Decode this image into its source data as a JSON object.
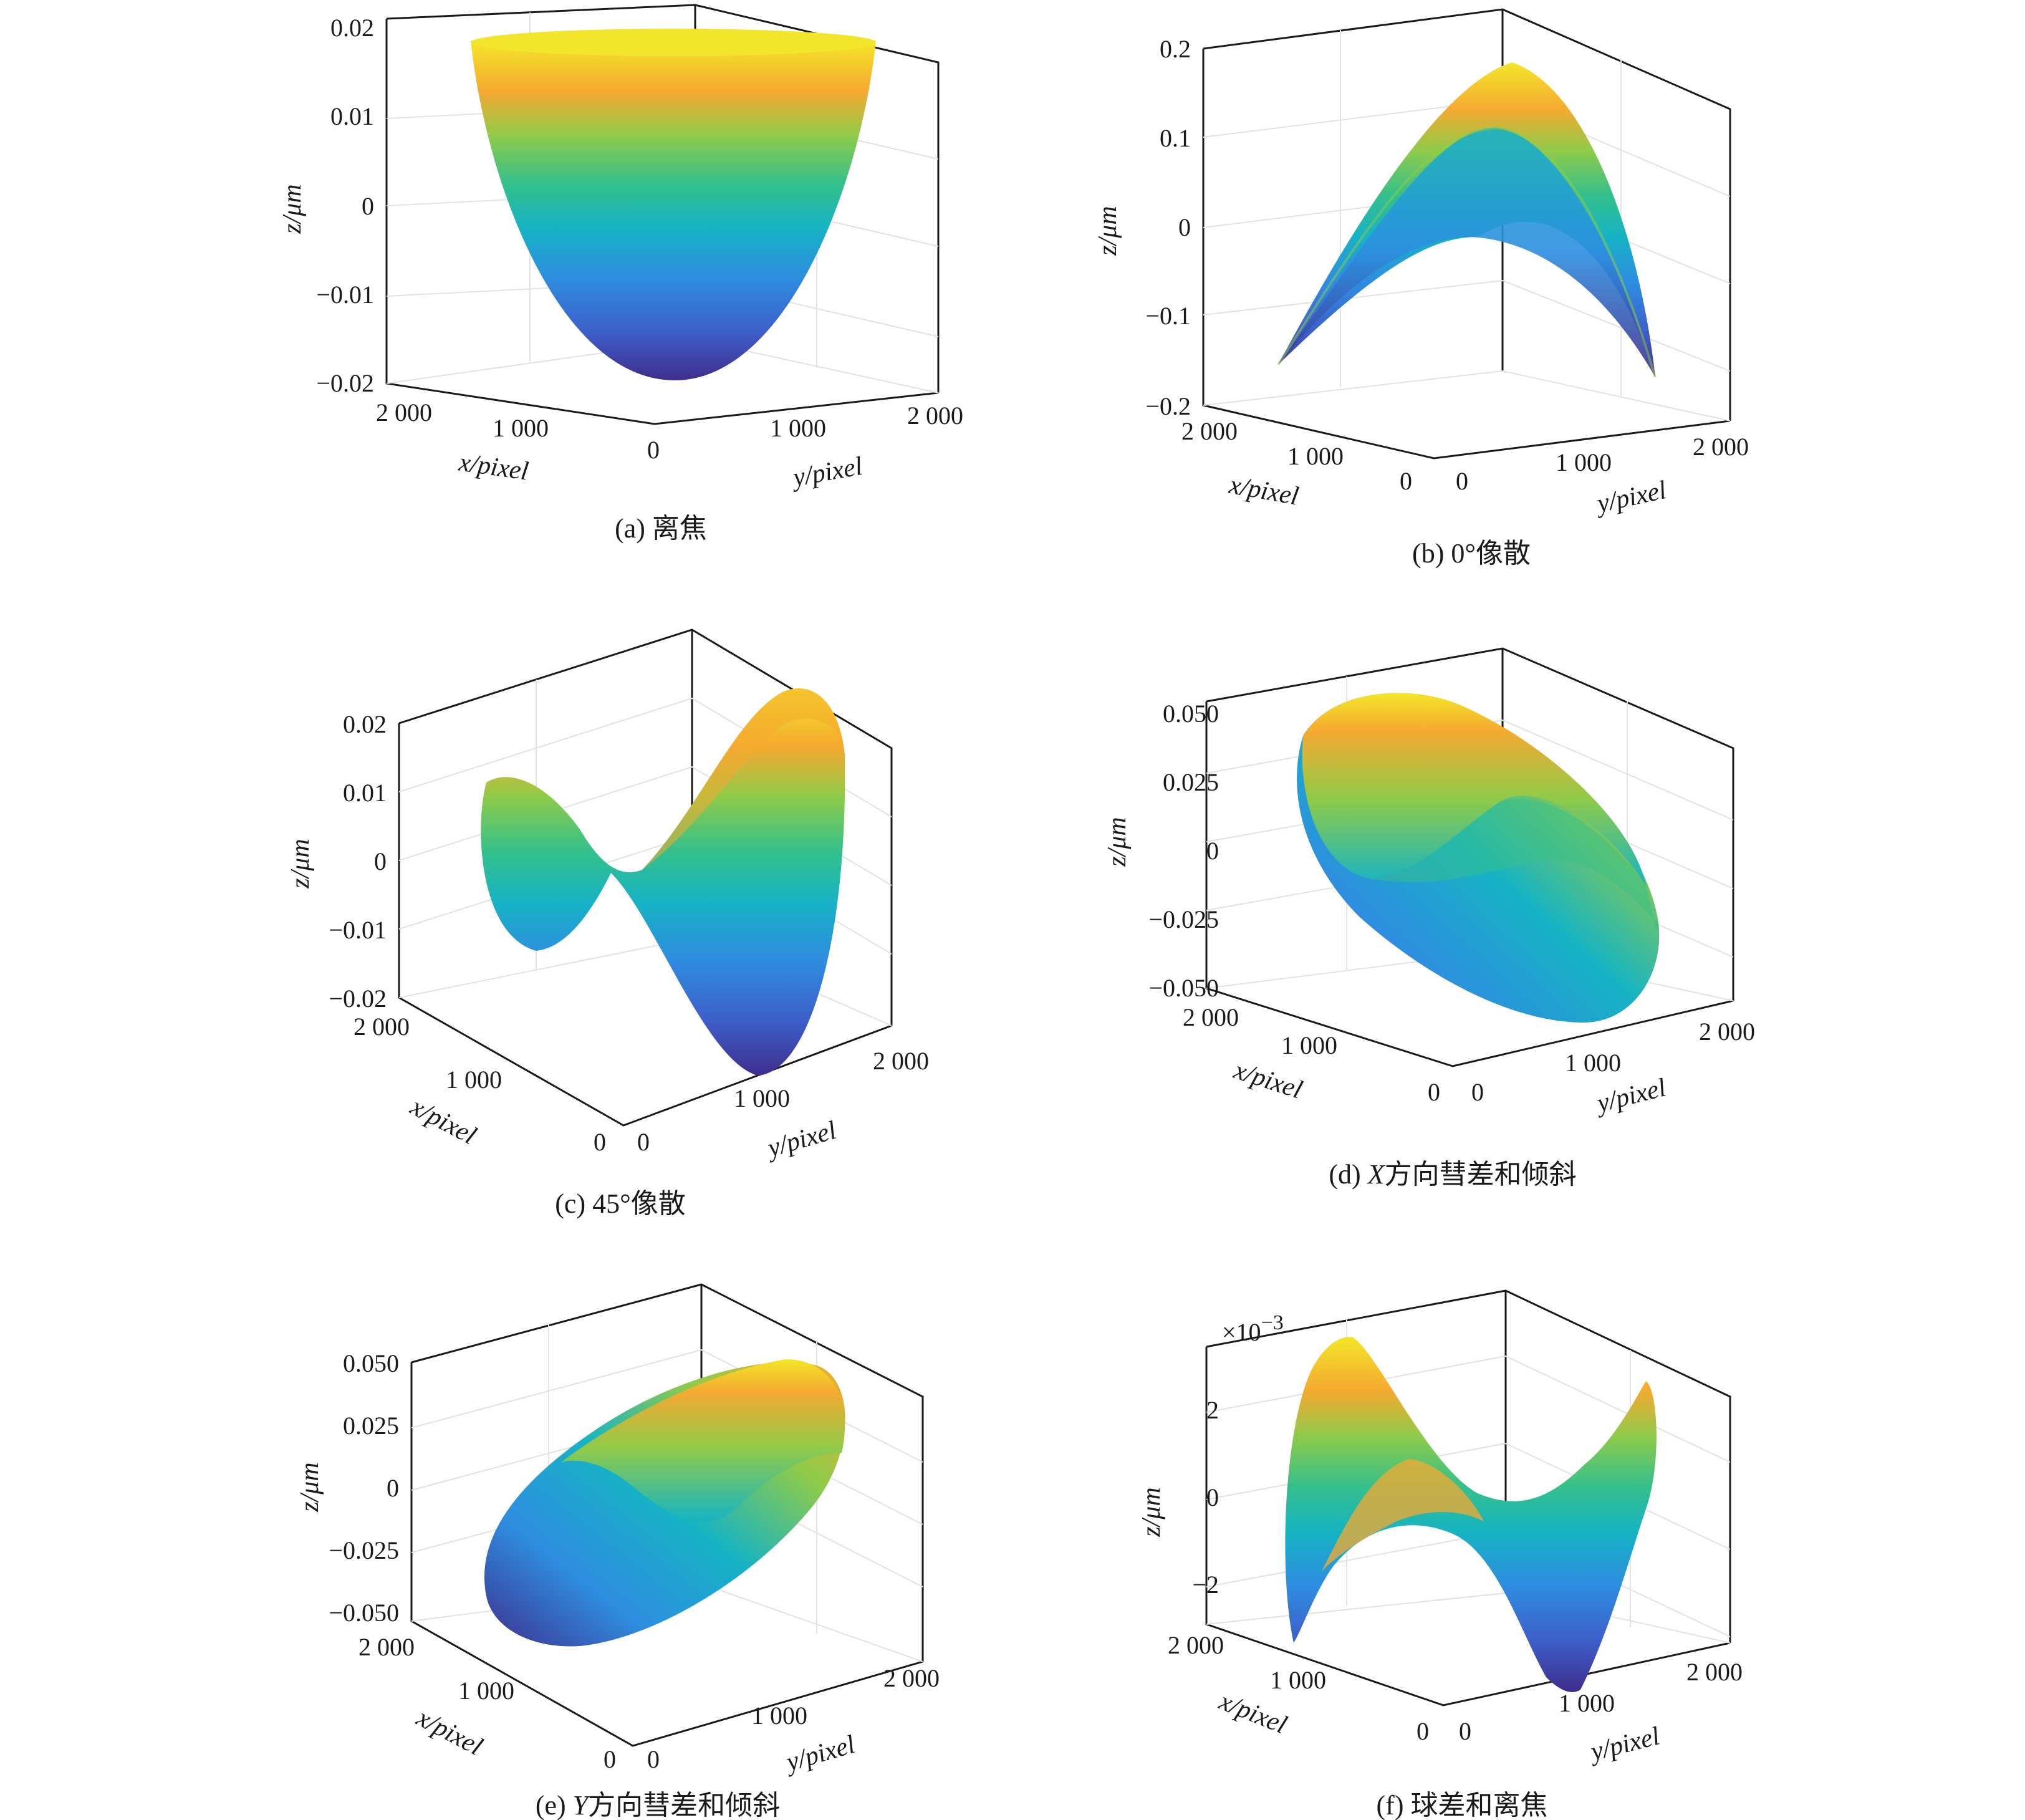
{
  "figure": {
    "colors": {
      "colormap": [
        "#3e2e8c",
        "#3d5ec9",
        "#2e8de0",
        "#16b3c4",
        "#35c08a",
        "#8fcb49",
        "#d3c32c",
        "#f5a930",
        "#f3e629"
      ],
      "axis": "#1a1a1a",
      "grid": "#e2e2e2"
    }
  },
  "chart_data": [
    {
      "id": "a",
      "type": "surface",
      "caption": "(a) 离焦",
      "zlabel": "z/μm",
      "xlabel": "x/pixel",
      "ylabel": "y/pixel",
      "zlim": [
        -0.02,
        0.02
      ],
      "zticks": [
        "0.02",
        "0.01",
        "0",
        "−0.01",
        "−0.02"
      ],
      "xticks": [
        "2 000",
        "1 000",
        "0"
      ],
      "yticks": [
        "0",
        "1 000",
        "2 000"
      ],
      "surface": "defocus",
      "view": "front"
    },
    {
      "id": "b",
      "type": "surface",
      "caption": "(b) 0°像散",
      "zlabel": "z/μm",
      "xlabel": "x/pixel",
      "ylabel": "y/pixel",
      "zlim": [
        -0.2,
        0.2
      ],
      "zticks": [
        "0.2",
        "0.1",
        "0",
        "−0.1",
        "−0.2"
      ],
      "xticks": [
        "2 000",
        "1 000",
        "0"
      ],
      "yticks": [
        "0",
        "1 000",
        "2 000"
      ],
      "surface": "astig0",
      "view": "side"
    },
    {
      "id": "c",
      "type": "surface",
      "caption": "(c) 45°像散",
      "zlabel": "z/μm",
      "xlabel": "x/pixel",
      "ylabel": "y/pixel",
      "zlim": [
        -0.02,
        0.02
      ],
      "zticks": [
        "0.02",
        "0.01",
        "0",
        "−0.01",
        "−0.02"
      ],
      "xticks": [
        "2 000",
        "1 000",
        "0"
      ],
      "yticks": [
        "0",
        "1 000",
        "2 000"
      ],
      "surface": "astig45",
      "view": "iso"
    },
    {
      "id": "d",
      "type": "surface",
      "caption_prefix": "(d) ",
      "caption_var": "X",
      "caption_rest": "方向彗差和倾斜",
      "zlabel": "z/μm",
      "xlabel": "x/pixel",
      "ylabel": "y/pixel",
      "zlim": [
        -0.05,
        0.05
      ],
      "zticks": [
        "0.050",
        "0.025",
        "0",
        "−0.025",
        "−0.050"
      ],
      "xticks": [
        "2 000",
        "1 000",
        "0"
      ],
      "yticks": [
        "0",
        "1 000",
        "2 000"
      ],
      "surface": "comaX",
      "view": "side"
    },
    {
      "id": "e",
      "type": "surface",
      "caption_prefix": "(e) ",
      "caption_var": "Y",
      "caption_rest": "方向彗差和倾斜",
      "zlabel": "z/μm",
      "xlabel": "x/pixel",
      "ylabel": "y/pixel",
      "zlim": [
        -0.05,
        0.05
      ],
      "zticks": [
        "0.050",
        "0.025",
        "0",
        "−0.025",
        "−0.050"
      ],
      "xticks": [
        "2 000",
        "1 000",
        "0"
      ],
      "yticks": [
        "0",
        "1 000",
        "2 000"
      ],
      "surface": "comaY",
      "view": "iso"
    },
    {
      "id": "f",
      "type": "surface",
      "caption": "(f) 球差和离焦",
      "zlabel": "z/μm",
      "xlabel": "x/pixel",
      "ylabel": "y/pixel",
      "zlim": [
        -3,
        3
      ],
      "zticks": [
        "2",
        "0",
        "−2"
      ],
      "multiplier": "×10",
      "multiplier_exp": "−3",
      "xticks": [
        "2 000",
        "1 000",
        "0"
      ],
      "yticks": [
        "0",
        "1 000",
        "2 000"
      ],
      "surface": "spherical",
      "view": "side"
    }
  ]
}
